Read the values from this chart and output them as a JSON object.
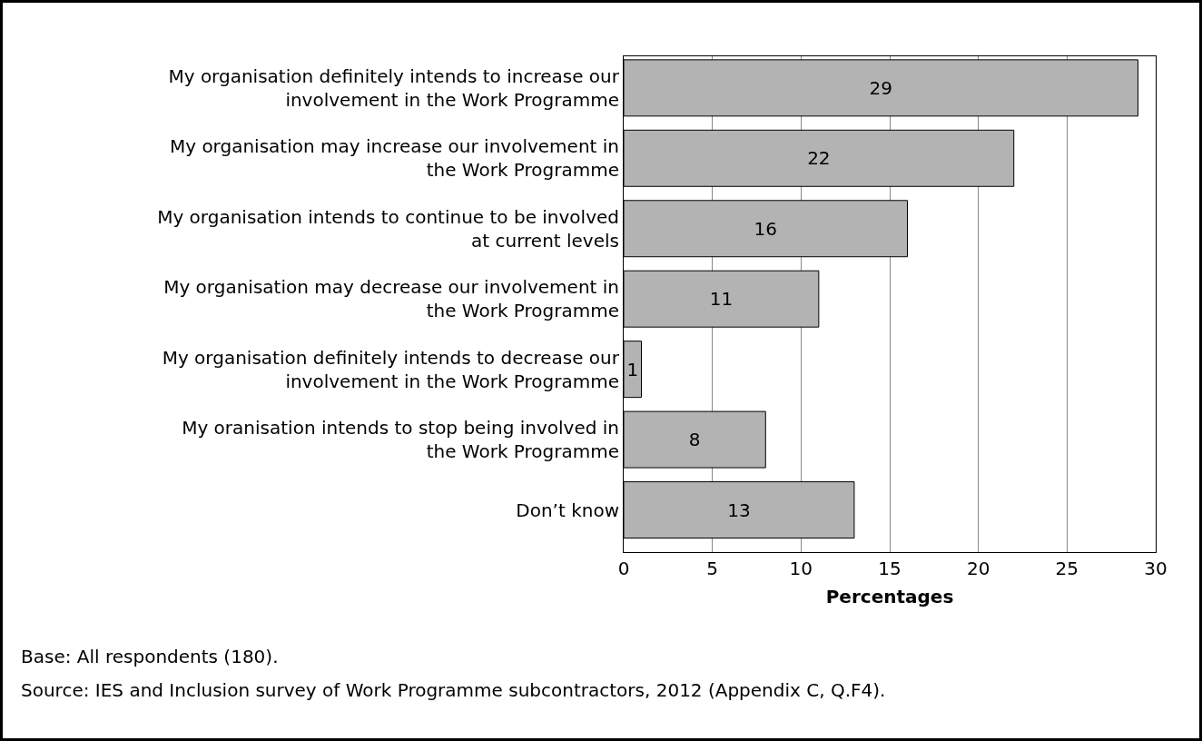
{
  "chart_data": {
    "type": "bar",
    "orientation": "horizontal",
    "categories": [
      "My organisation definitely intends to increase our involvement in the Work Programme",
      "My organisation may increase our involvement in the Work Programme",
      "My organisation intends to continue to be involved at current levels",
      "My organisation may decrease our involvement in the Work Programme",
      "My organisation definitely intends to decrease our involvement in the Work Programme",
      "My oranisation intends to stop being involved in the Work Programme",
      "Don’t know"
    ],
    "values": [
      29,
      22,
      16,
      11,
      1,
      8,
      13
    ],
    "color": "#b3b3b3",
    "data_labels": true,
    "xlabel": "Percentages",
    "xlim": [
      0,
      30
    ],
    "xticks": [
      0,
      5,
      10,
      15,
      20,
      25,
      30
    ],
    "grid": "x",
    "annotations": [
      "Base: All respondents (180).",
      "Source: IES and Inclusion survey of Work Programme subcontractors, 2012 (Appendix C, Q.F4)."
    ]
  }
}
